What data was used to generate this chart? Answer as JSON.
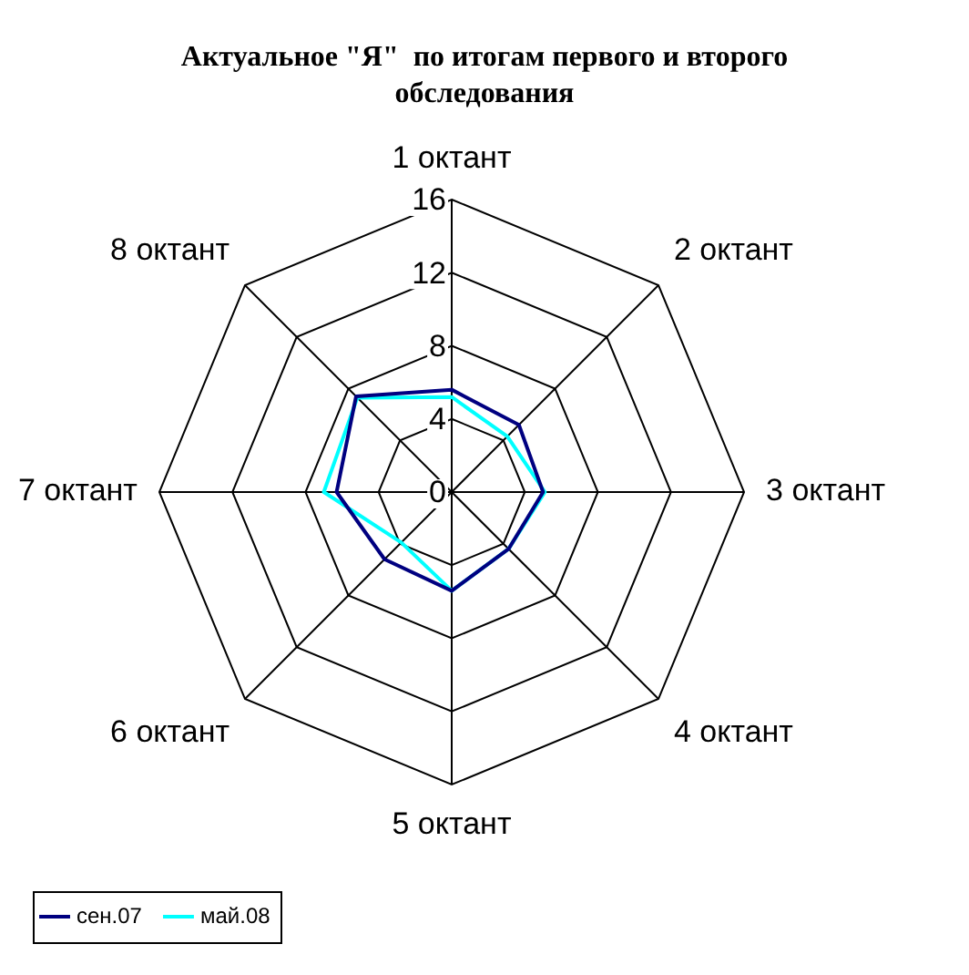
{
  "chart_data": {
    "type": "radar",
    "title": "Актуальное \"Я\"  по итогам первого и второго обследования",
    "categories": [
      "1 октант",
      "2 октант",
      "3 октант",
      "4 октант",
      "5 октант",
      "6 октант",
      "7 октант",
      "8 октант"
    ],
    "series": [
      {
        "name": "сен.07",
        "color": "#000080",
        "values": [
          5.6,
          5.2,
          5.0,
          4.4,
          5.4,
          5.2,
          6.3,
          7.4
        ]
      },
      {
        "name": "май.08",
        "color": "#00ffff",
        "values": [
          5.2,
          4.3,
          5.1,
          4.4,
          5.4,
          3.9,
          7.0,
          7.3
        ]
      }
    ],
    "ylim": [
      0,
      16
    ],
    "yticks": [
      0,
      4,
      8,
      12,
      16
    ],
    "grid": true,
    "legend": "bottom left",
    "marker": "none",
    "line_style": "solid"
  }
}
